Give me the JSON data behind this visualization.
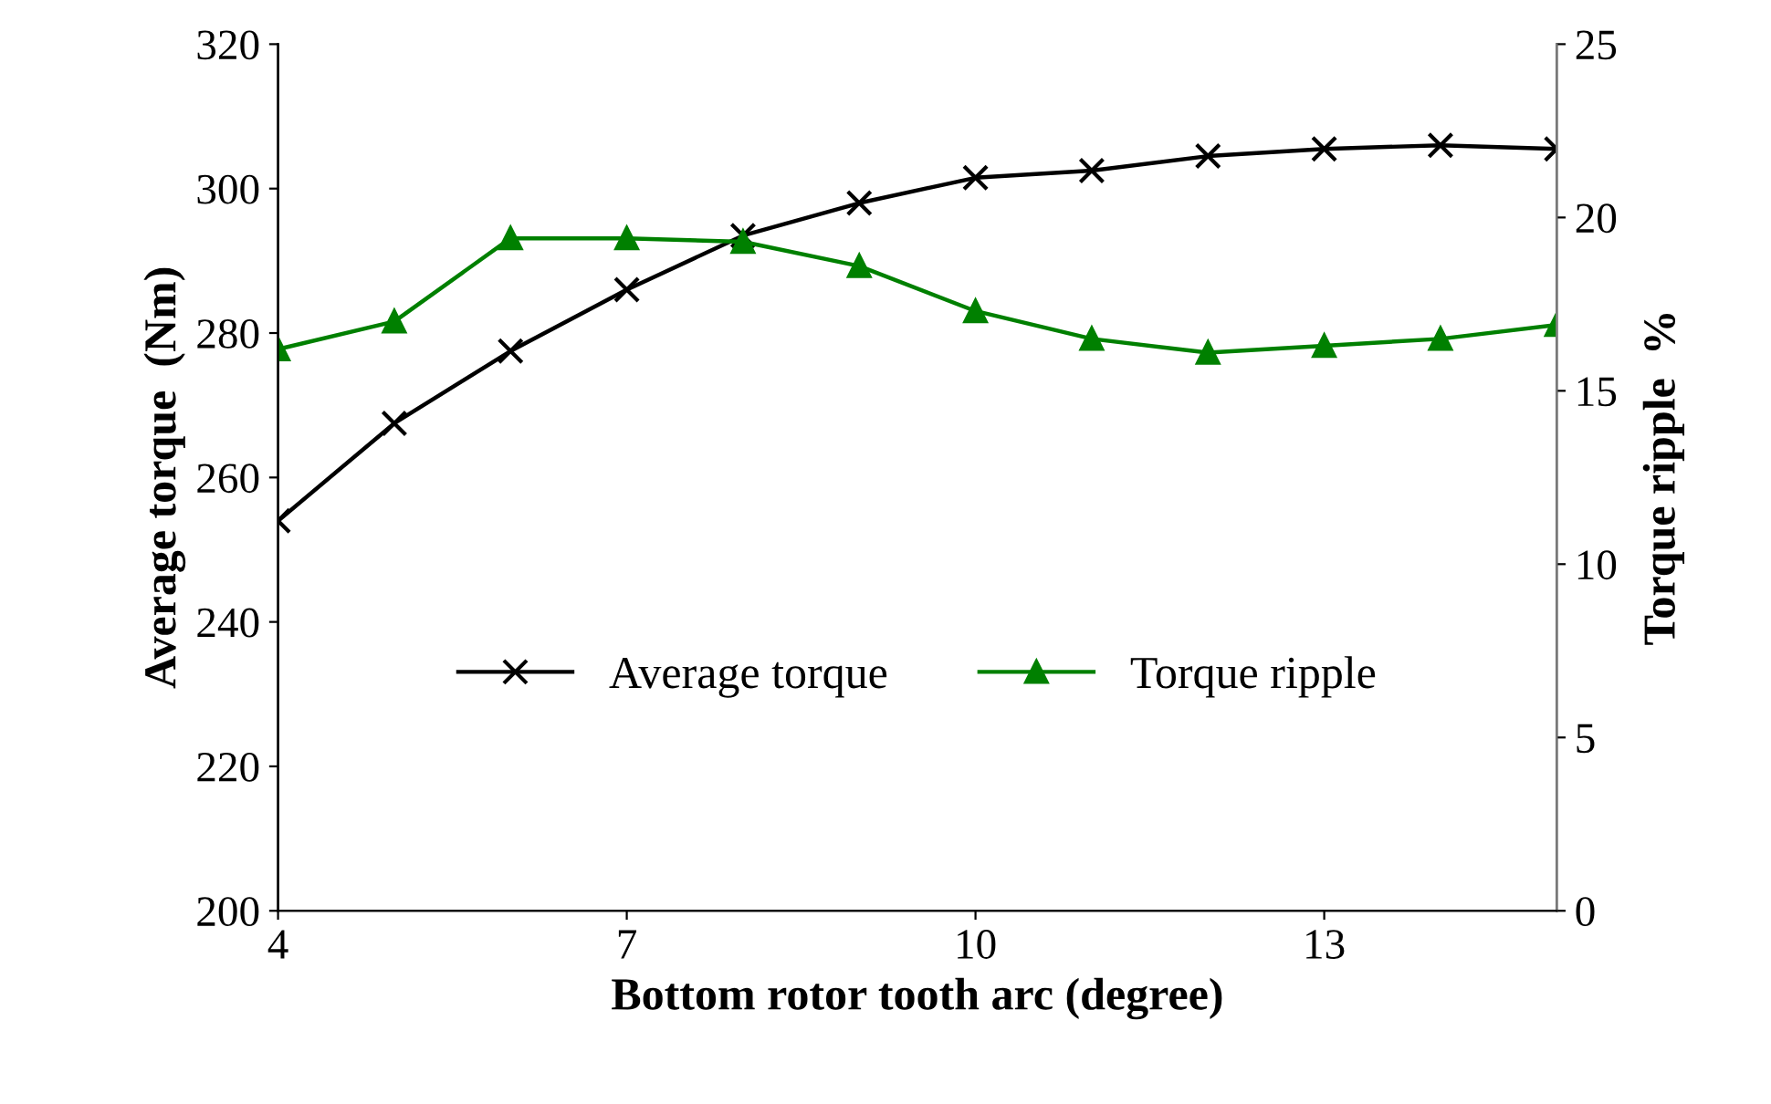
{
  "chart_data": {
    "type": "line",
    "xlabel": "Bottom rotor tooth arc (degree)",
    "ylabel": "Average torque  (Nm)",
    "y2label": "Torque ripple  %",
    "x": [
      4,
      5,
      6,
      7,
      8,
      9,
      10,
      11,
      12,
      13,
      14,
      15
    ],
    "series": [
      {
        "name": "Average torque",
        "color": "#000000",
        "marker": "cross",
        "values": [
          254,
          267.5,
          277.5,
          286,
          293.5,
          298,
          301.5,
          302.5,
          304.5,
          305.5,
          306,
          305.5
        ]
      },
      {
        "name": "Torque ripple",
        "color": "#008000",
        "marker": "triangle",
        "axis": "y2",
        "values": [
          16.2,
          17.0,
          19.4,
          19.4,
          19.3,
          18.6,
          17.3,
          16.5,
          16.1,
          16.3,
          16.5,
          16.9
        ]
      }
    ],
    "xlim": [
      4,
      15
    ],
    "xticks": [
      4,
      7,
      10,
      13
    ],
    "ylim": [
      200,
      320
    ],
    "yticks": [
      200,
      220,
      240,
      260,
      280,
      300,
      320
    ],
    "y2lim": [
      0,
      25
    ],
    "y2ticks": [
      0,
      5,
      10,
      15,
      20,
      25
    ],
    "grid": false,
    "legend": "center"
  }
}
